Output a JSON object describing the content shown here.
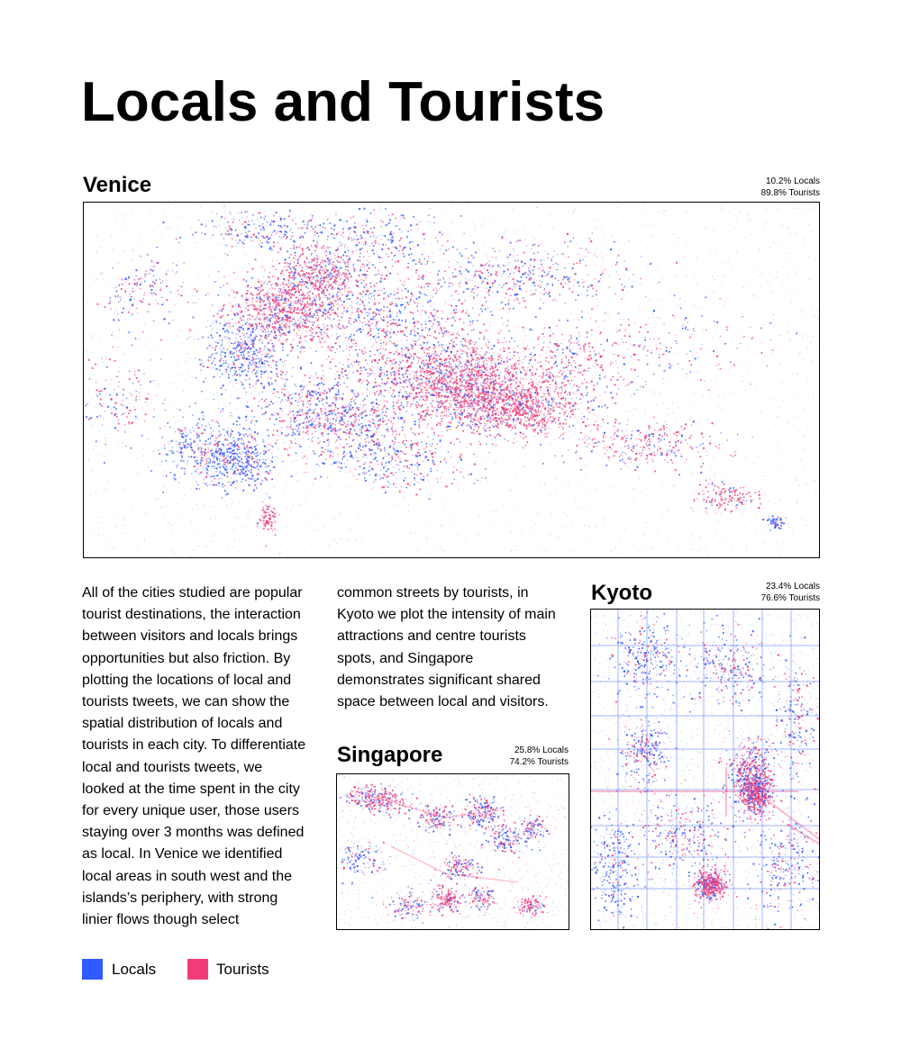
{
  "title": "Locals and Tourists",
  "colors": {
    "locals": "#2f5bff",
    "tourists": "#f03d78"
  },
  "maps": {
    "venice": {
      "name": "Venice",
      "locals_stat": "10.2% Locals",
      "tourists_stat": "89.8% Tourists"
    },
    "kyoto": {
      "name": "Kyoto",
      "locals_stat": "23.4% Locals",
      "tourists_stat": "76.6% Tourists"
    },
    "singapore": {
      "name": "Singapore",
      "locals_stat": "25.8% Locals",
      "tourists_stat": "74.2% Tourists"
    }
  },
  "body": {
    "col1": [
      "All of the cities studied are popular",
      "tourist destinations, the interaction",
      "between visitors and locals brings",
      "opportunities but also friction. By",
      "plotting the locations of local and",
      "tourists tweets, we can show the",
      "spatial distribution of locals and",
      "tourists in each city. To differentiate",
      "local and tourists tweets, we",
      "looked at the time spent in the city",
      "for every unique user, those users",
      "staying over 3 months was defined",
      "as local. In Venice we identified",
      "local areas in south west and the",
      "islands’s periphery, with strong",
      "linier flows though select"
    ],
    "col2": [
      "common streets by tourists, in",
      "Kyoto we plot the intensity of main",
      "attractions and centre tourists",
      "spots, and Singapore",
      "demonstrates significant shared",
      "space between local and visitors."
    ]
  },
  "legend": {
    "locals": "Locals",
    "tourists": "Tourists"
  }
}
